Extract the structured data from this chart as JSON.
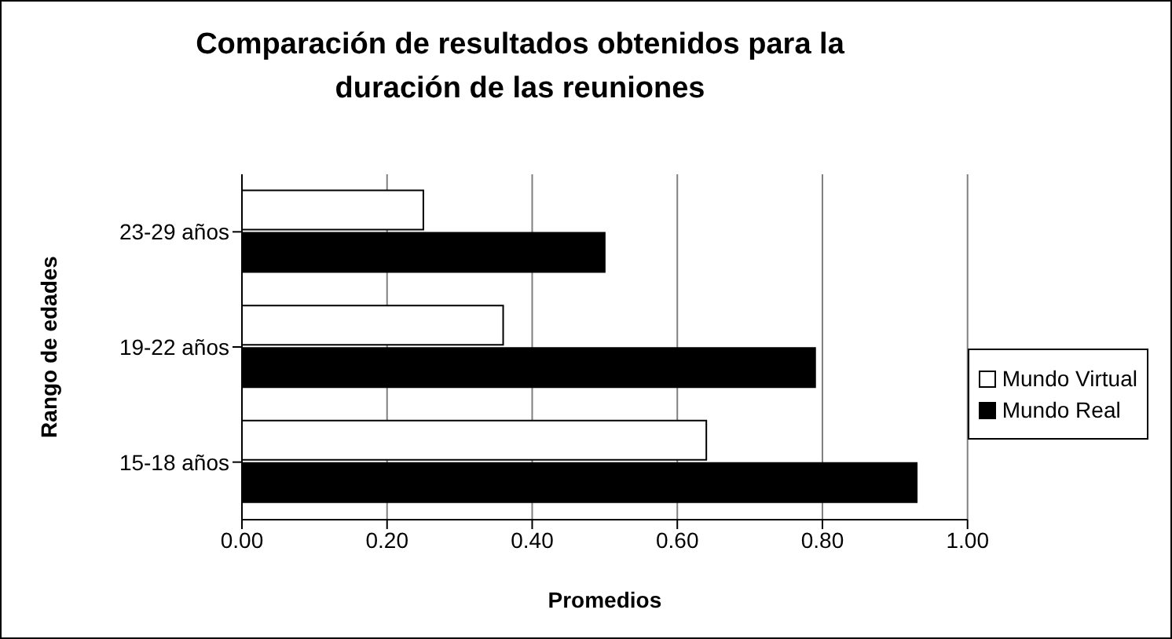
{
  "chart_data": {
    "type": "bar",
    "orientation": "horizontal",
    "title": "Comparación de resultados obtenidos para la duración de las reuniones",
    "xlabel": "Promedios",
    "ylabel": "Rango de edades",
    "categories": [
      "23-29 años",
      "19-22 años",
      "15-18 años"
    ],
    "series": [
      {
        "name": "Mundo Virtual",
        "color": "#ffffff",
        "values": [
          0.25,
          0.36,
          0.64
        ]
      },
      {
        "name": "Mundo Real",
        "color": "#000000",
        "values": [
          0.5,
          0.79,
          0.93
        ]
      }
    ],
    "xlim": [
      0,
      1
    ],
    "xticks": [
      {
        "value": 0,
        "label": "0.00"
      },
      {
        "value": 0.2,
        "label": "0.20"
      },
      {
        "value": 0.4,
        "label": "0.40"
      },
      {
        "value": 0.6,
        "label": "0.60"
      },
      {
        "value": 0.8,
        "label": "0.80"
      },
      {
        "value": 1,
        "label": "1.00"
      }
    ],
    "grid": "x",
    "legend": "right"
  }
}
